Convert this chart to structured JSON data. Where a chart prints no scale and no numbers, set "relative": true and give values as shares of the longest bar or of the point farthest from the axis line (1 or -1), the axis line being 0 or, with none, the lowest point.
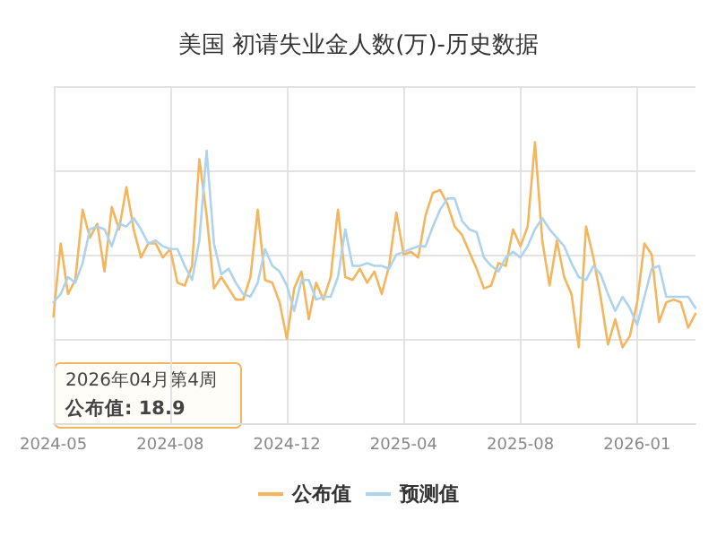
{
  "chart_data": {
    "type": "line",
    "title": "美国 初请失业金人数(万)-历史数据",
    "relative": true,
    "categories": [
      "2024-05",
      null,
      null,
      null,
      null,
      null,
      null,
      null,
      null,
      null,
      null,
      null,
      null,
      null,
      null,
      null,
      "2024-08",
      null,
      null,
      null,
      null,
      null,
      null,
      null,
      null,
      null,
      null,
      null,
      null,
      null,
      null,
      null,
      "2024-12",
      null,
      null,
      null,
      null,
      null,
      null,
      null,
      null,
      null,
      null,
      null,
      null,
      null,
      null,
      null,
      "2025-04",
      null,
      null,
      null,
      null,
      null,
      null,
      null,
      null,
      null,
      null,
      null,
      null,
      null,
      null,
      null,
      "2025-08",
      null,
      null,
      null,
      null,
      null,
      null,
      null,
      null,
      null,
      null,
      null,
      null,
      null,
      null,
      null,
      "2026-01",
      null,
      null,
      null,
      null,
      null,
      null,
      null,
      null
    ],
    "series": [
      {
        "name": "公布值",
        "color": "#f4b55f",
        "values": [
          0.38,
          0.64,
          0.46,
          0.51,
          0.76,
          0.66,
          0.71,
          0.54,
          0.77,
          0.69,
          0.84,
          0.69,
          0.59,
          0.64,
          0.64,
          0.59,
          0.62,
          0.5,
          0.49,
          0.56,
          0.94,
          0.74,
          0.48,
          0.52,
          0.48,
          0.44,
          0.44,
          0.52,
          0.76,
          0.51,
          0.5,
          0.43,
          0.3,
          0.48,
          0.54,
          0.37,
          0.5,
          0.44,
          0.52,
          0.76,
          0.52,
          0.51,
          0.55,
          0.5,
          0.54,
          0.46,
          0.56,
          0.75,
          0.6,
          0.61,
          0.59,
          0.74,
          0.82,
          0.83,
          0.78,
          0.7,
          0.67,
          0.61,
          0.55,
          0.48,
          0.49,
          0.57,
          0.56,
          0.69,
          0.63,
          0.7,
          1,
          0.65,
          0.49,
          0.65,
          0.52,
          0.46,
          0.27,
          0.7,
          0.59,
          0.45,
          0.28,
          0.37,
          0.27,
          0.31,
          0.43,
          0.64,
          0.6,
          0.36,
          0.43,
          0.44,
          0.43,
          0.34,
          0.39
        ]
      },
      {
        "name": "预测值",
        "color": "#aed3ec",
        "values": [
          0.43,
          0.46,
          0.52,
          0.5,
          0.57,
          0.69,
          0.7,
          0.69,
          0.63,
          0.71,
          0.7,
          0.73,
          0.69,
          0.64,
          0.65,
          0.63,
          0.62,
          0.62,
          0.56,
          0.51,
          0.65,
          0.97,
          0.64,
          0.53,
          0.55,
          0.5,
          0.46,
          0.45,
          0.5,
          0.62,
          0.56,
          0.54,
          0.49,
          0.4,
          0.51,
          0.51,
          0.44,
          0.45,
          0.45,
          0.52,
          0.69,
          0.56,
          0.56,
          0.57,
          0.56,
          0.56,
          0.55,
          0.6,
          0.61,
          0.62,
          0.63,
          0.63,
          0.7,
          0.76,
          0.8,
          0.8,
          0.72,
          0.69,
          0.68,
          0.59,
          0.56,
          0.54,
          0.59,
          0.61,
          0.59,
          0.63,
          0.69,
          0.73,
          0.69,
          0.66,
          0.63,
          0.57,
          0.52,
          0.51,
          0.56,
          0.53,
          0.46,
          0.4,
          0.45,
          0.41,
          0.35,
          0.45,
          0.55,
          0.56,
          0.45,
          0.45,
          0.45,
          0.45,
          0.41
        ]
      }
    ],
    "annotations": [
      "2026年04月第4周",
      "公布值: 18.9"
    ],
    "grid": true,
    "legend": "bottom",
    "marker": "none",
    "line_style": "solid"
  }
}
